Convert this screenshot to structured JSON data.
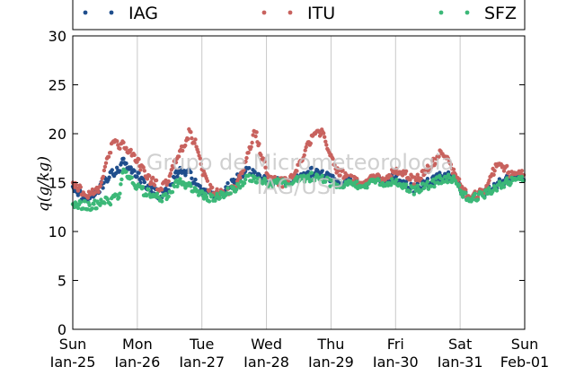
{
  "chart_data": {
    "type": "scatter",
    "ylabel": "q(g/kg)",
    "ylim": [
      0,
      30
    ],
    "yticks": [
      0,
      5,
      10,
      15,
      20,
      25,
      30
    ],
    "xlim": [
      0,
      7
    ],
    "x_ticks": [
      {
        "day": 0,
        "weekday": "Sun",
        "date": "Jan-25"
      },
      {
        "day": 1,
        "weekday": "Mon",
        "date": "Jan-26"
      },
      {
        "day": 2,
        "weekday": "Tue",
        "date": "Jan-27"
      },
      {
        "day": 3,
        "weekday": "Wed",
        "date": "Jan-28"
      },
      {
        "day": 4,
        "weekday": "Thu",
        "date": "Jan-29"
      },
      {
        "day": 5,
        "weekday": "Fri",
        "date": "Jan-30"
      },
      {
        "day": 6,
        "weekday": "Sat",
        "date": "Jan-31"
      },
      {
        "day": 7,
        "weekday": "Sun",
        "date": "Feb-01"
      }
    ],
    "grid": "vertical",
    "legend_position": "top",
    "watermark": [
      "Grupo de Micrometeorologia",
      "IAG/USP"
    ],
    "series": [
      {
        "name": "IAG",
        "color": "#1f4e8c",
        "points": [
          [
            0.0,
            14.6
          ],
          [
            0.15,
            13.6
          ],
          [
            0.25,
            13.4
          ],
          [
            0.4,
            14.3
          ],
          [
            0.55,
            15.6
          ],
          [
            0.7,
            16.4
          ],
          [
            0.8,
            17.2
          ],
          [
            0.9,
            16.4
          ],
          [
            1.05,
            15.4
          ],
          [
            1.2,
            14.3
          ],
          [
            1.35,
            13.7
          ],
          [
            1.5,
            14.6
          ],
          [
            1.65,
            16.3
          ],
          [
            1.8,
            16.0
          ],
          [
            1.9,
            14.9
          ],
          [
            2.0,
            14.1
          ],
          [
            2.2,
            13.6
          ],
          [
            2.4,
            14.5
          ],
          [
            2.55,
            15.6
          ],
          [
            2.7,
            16.2
          ],
          [
            2.85,
            15.8
          ],
          [
            3.0,
            15.2
          ],
          [
            3.2,
            15.0
          ],
          [
            3.4,
            15.1
          ],
          [
            3.55,
            15.6
          ],
          [
            3.7,
            16.1
          ],
          [
            3.85,
            15.8
          ],
          [
            4.0,
            15.5
          ],
          [
            4.2,
            15.1
          ],
          [
            4.4,
            14.9
          ],
          [
            4.6,
            15.2
          ],
          [
            4.8,
            15.5
          ],
          [
            5.0,
            15.3
          ],
          [
            5.15,
            14.8
          ],
          [
            5.3,
            14.4
          ],
          [
            5.45,
            14.8
          ],
          [
            5.6,
            15.3
          ],
          [
            5.75,
            15.8
          ],
          [
            5.9,
            15.5
          ],
          [
            6.0,
            14.5
          ],
          [
            6.1,
            13.6
          ],
          [
            6.2,
            13.4
          ],
          [
            6.35,
            13.8
          ],
          [
            6.5,
            14.4
          ],
          [
            6.65,
            15.2
          ],
          [
            6.8,
            15.4
          ],
          [
            7.0,
            15.3
          ]
        ]
      },
      {
        "name": "ITU",
        "color": "#c8625e",
        "points": [
          [
            0.0,
            15.0
          ],
          [
            0.15,
            14.1
          ],
          [
            0.25,
            13.8
          ],
          [
            0.4,
            14.4
          ],
          [
            0.5,
            16.6
          ],
          [
            0.6,
            18.8
          ],
          [
            0.7,
            19.0
          ],
          [
            0.8,
            18.7
          ],
          [
            0.9,
            18.2
          ],
          [
            1.05,
            16.7
          ],
          [
            1.2,
            15.3
          ],
          [
            1.35,
            14.5
          ],
          [
            1.5,
            15.5
          ],
          [
            1.6,
            17.3
          ],
          [
            1.7,
            18.6
          ],
          [
            1.8,
            20.1
          ],
          [
            1.9,
            19.0
          ],
          [
            2.0,
            16.4
          ],
          [
            2.1,
            14.6
          ],
          [
            2.25,
            14.0
          ],
          [
            2.4,
            13.9
          ],
          [
            2.55,
            14.9
          ],
          [
            2.65,
            16.3
          ],
          [
            2.75,
            18.7
          ],
          [
            2.82,
            20.4
          ],
          [
            2.9,
            18.4
          ],
          [
            3.0,
            16.1
          ],
          [
            3.1,
            15.4
          ],
          [
            3.25,
            15.0
          ],
          [
            3.4,
            15.6
          ],
          [
            3.5,
            17.0
          ],
          [
            3.6,
            18.2
          ],
          [
            3.7,
            19.4
          ],
          [
            3.8,
            20.4
          ],
          [
            3.9,
            19.7
          ],
          [
            4.0,
            17.6
          ],
          [
            4.1,
            16.2
          ],
          [
            4.25,
            15.5
          ],
          [
            4.4,
            15.0
          ],
          [
            4.6,
            15.3
          ],
          [
            4.8,
            15.6
          ],
          [
            5.0,
            16.0
          ],
          [
            5.15,
            15.9
          ],
          [
            5.3,
            15.2
          ],
          [
            5.45,
            15.9
          ],
          [
            5.6,
            17.2
          ],
          [
            5.7,
            18.4
          ],
          [
            5.8,
            17.5
          ],
          [
            5.9,
            16.0
          ],
          [
            6.0,
            14.9
          ],
          [
            6.1,
            13.8
          ],
          [
            6.2,
            13.6
          ],
          [
            6.35,
            14.0
          ],
          [
            6.45,
            15.2
          ],
          [
            6.55,
            16.6
          ],
          [
            6.65,
            16.8
          ],
          [
            6.8,
            15.8
          ],
          [
            7.0,
            15.8
          ]
        ]
      },
      {
        "name": "SFZ",
        "color": "#3cb878",
        "points": [
          [
            0.0,
            12.8
          ],
          [
            0.15,
            12.7
          ],
          [
            0.3,
            12.6
          ],
          [
            0.45,
            13.0
          ],
          [
            0.6,
            13.2
          ],
          [
            0.7,
            13.5
          ],
          [
            0.8,
            16.4
          ],
          [
            0.9,
            15.4
          ],
          [
            1.0,
            14.5
          ],
          [
            1.1,
            14.1
          ],
          [
            1.25,
            13.6
          ],
          [
            1.35,
            13.4
          ],
          [
            1.5,
            13.9
          ],
          [
            1.65,
            15.2
          ],
          [
            1.8,
            14.6
          ],
          [
            1.95,
            13.9
          ],
          [
            2.1,
            13.5
          ],
          [
            2.25,
            13.6
          ],
          [
            2.4,
            14.0
          ],
          [
            2.55,
            14.6
          ],
          [
            2.7,
            15.4
          ],
          [
            2.85,
            15.3
          ],
          [
            3.0,
            15.0
          ],
          [
            3.2,
            14.9
          ],
          [
            3.4,
            15.0
          ],
          [
            3.55,
            15.4
          ],
          [
            3.7,
            15.6
          ],
          [
            3.85,
            15.3
          ],
          [
            4.0,
            15.0
          ],
          [
            4.2,
            14.8
          ],
          [
            4.4,
            14.7
          ],
          [
            4.6,
            14.9
          ],
          [
            4.8,
            15.1
          ],
          [
            5.0,
            14.9
          ],
          [
            5.15,
            14.5
          ],
          [
            5.3,
            14.2
          ],
          [
            5.45,
            14.5
          ],
          [
            5.6,
            15.0
          ],
          [
            5.75,
            15.5
          ],
          [
            5.9,
            15.3
          ],
          [
            6.0,
            14.3
          ],
          [
            6.1,
            13.5
          ],
          [
            6.2,
            13.4
          ],
          [
            6.35,
            13.7
          ],
          [
            6.5,
            14.2
          ],
          [
            6.65,
            14.9
          ],
          [
            6.8,
            15.2
          ],
          [
            7.0,
            15.2
          ]
        ]
      }
    ]
  }
}
